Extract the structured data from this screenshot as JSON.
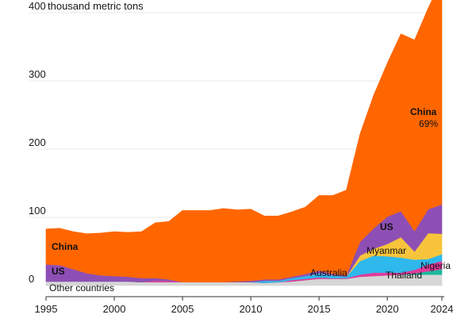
{
  "chart_data": {
    "type": "area",
    "stacked": true,
    "unit_label": "thousand metric tons",
    "x": [
      1995,
      1996,
      1997,
      1998,
      1999,
      2000,
      2001,
      2002,
      2003,
      2004,
      2005,
      2006,
      2007,
      2008,
      2009,
      2010,
      2011,
      2012,
      2013,
      2014,
      2015,
      2016,
      2017,
      2018,
      2019,
      2020,
      2021,
      2022,
      2023,
      2024
    ],
    "xticks": [
      "1995",
      "2000",
      "2005",
      "2010",
      "2015",
      "2020",
      "2024"
    ],
    "xtick_values": [
      1995,
      2000,
      2005,
      2010,
      2015,
      2020,
      2024
    ],
    "yticks": [
      "0",
      "100",
      "200",
      "300",
      "400"
    ],
    "ytick_values": [
      0,
      100,
      200,
      300,
      400
    ],
    "ylim": [
      0,
      400
    ],
    "xlim": [
      1995,
      2024
    ],
    "series": [
      {
        "name": "Other countries",
        "color": "#d6d6d6",
        "values": [
          6,
          6,
          6,
          6,
          6,
          6,
          6,
          5,
          5,
          5,
          5,
          5,
          5,
          5,
          5,
          5,
          4,
          5,
          6,
          8,
          10,
          10,
          10,
          13,
          14,
          15,
          16,
          16,
          16,
          16
        ]
      },
      {
        "name": "Nigeria",
        "color": "#1bb89a",
        "values": [
          0,
          0,
          0,
          0,
          0,
          0,
          0,
          0,
          0,
          0,
          0,
          0,
          0,
          0,
          0,
          0,
          0,
          0,
          0,
          0,
          0,
          0,
          0,
          0,
          0,
          0,
          0,
          2,
          5,
          8
        ]
      },
      {
        "name": "Thailand",
        "color": "#e33a9b",
        "values": [
          0,
          0,
          0,
          0,
          0,
          0,
          0,
          0,
          2,
          2,
          0,
          0,
          0,
          0,
          0,
          0,
          0,
          0,
          2,
          2,
          2,
          1,
          1,
          3,
          5,
          4,
          3,
          5,
          10,
          12
        ]
      },
      {
        "name": "Australia",
        "color": "#2eb8ec",
        "values": [
          0,
          0,
          0,
          0,
          0,
          0,
          0,
          0,
          0,
          0,
          0,
          0,
          0,
          0,
          0,
          0,
          3,
          2,
          3,
          4,
          6,
          4,
          2,
          20,
          25,
          24,
          22,
          15,
          8,
          10
        ]
      },
      {
        "name": "Myanmar",
        "color": "#f7c43c",
        "values": [
          0,
          0,
          0,
          0,
          0,
          0,
          0,
          0,
          0,
          0,
          0,
          0,
          0,
          0,
          0,
          0,
          0,
          0,
          0,
          0,
          0,
          0,
          0,
          8,
          10,
          18,
          30,
          12,
          38,
          30
        ]
      },
      {
        "name": "US",
        "color": "#8e4fb5",
        "values": [
          25,
          24,
          18,
          12,
          9,
          8,
          7,
          6,
          4,
          2,
          0,
          0,
          0,
          0,
          1,
          2,
          2,
          2,
          2,
          3,
          4,
          2,
          2,
          20,
          30,
          40,
          38,
          30,
          35,
          43
        ]
      },
      {
        "name": "China",
        "color": "#ff6600",
        "values": [
          52,
          54,
          55,
          58,
          62,
          65,
          65,
          68,
          81,
          85,
          105,
          105,
          105,
          108,
          105,
          105,
          93,
          93,
          95,
          98,
          110,
          115,
          125,
          158,
          195,
          225,
          260,
          280,
          295,
          330
        ]
      }
    ],
    "annotations": {
      "china_upper": "China",
      "china_share": "69%",
      "china_lower": "China",
      "us_upper": "US",
      "us_lower": "US",
      "other_countries": "Other countries",
      "australia": "Australia",
      "myanmar": "Myanmar",
      "thailand": "Thailand",
      "nigeria": "Nigeria"
    }
  }
}
